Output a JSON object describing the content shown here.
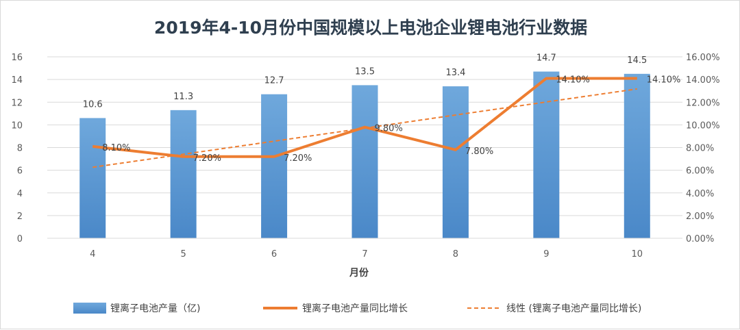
{
  "colors": {
    "bar_top": "#6fa8dc",
    "bar_bottom": "#4a88c8",
    "line": "#ed7d31",
    "grid": "#d9d9d9",
    "axis_text": "#595959"
  },
  "chart_data": {
    "type": "bar",
    "title": "2019年4-10月份中国规模以上电池企业锂电池行业数据",
    "xlabel": "月份",
    "categories": [
      "4",
      "5",
      "6",
      "7",
      "8",
      "9",
      "10"
    ],
    "ylim": [
      0,
      16
    ],
    "yticks": [
      "0",
      "2",
      "4",
      "6",
      "8",
      "10",
      "12",
      "14",
      "16"
    ],
    "y2lim": [
      0,
      0.16
    ],
    "y2ticks": [
      "0.00%",
      "2.00%",
      "4.00%",
      "6.00%",
      "8.00%",
      "10.00%",
      "12.00%",
      "14.00%",
      "16.00%"
    ],
    "grid": true,
    "legend_position": "bottom",
    "series": [
      {
        "name": "锂离子电池产量（亿)",
        "type": "bar",
        "axis": "left",
        "values": [
          10.6,
          11.3,
          12.7,
          13.5,
          13.4,
          14.7,
          14.5
        ],
        "labels": [
          "10.6",
          "11.3",
          "12.7",
          "13.5",
          "13.4",
          "14.7",
          "14.5"
        ]
      },
      {
        "name": "锂离子电池产量同比增长",
        "type": "line",
        "axis": "right",
        "values": [
          0.081,
          0.072,
          0.072,
          0.098,
          0.078,
          0.141,
          0.141
        ],
        "labels": [
          "8.10%",
          "7.20%",
          "7.20%",
          "9.80%",
          "7.80%",
          "14.10%",
          "14.10%"
        ]
      },
      {
        "name": "线性 (锂离子电池产量同比增长)",
        "type": "trendline",
        "axis": "right",
        "style": "dashed",
        "values": [
          0.0626,
          0.0741,
          0.0856,
          0.0971,
          0.1087,
          0.1202,
          0.1317
        ]
      }
    ]
  }
}
